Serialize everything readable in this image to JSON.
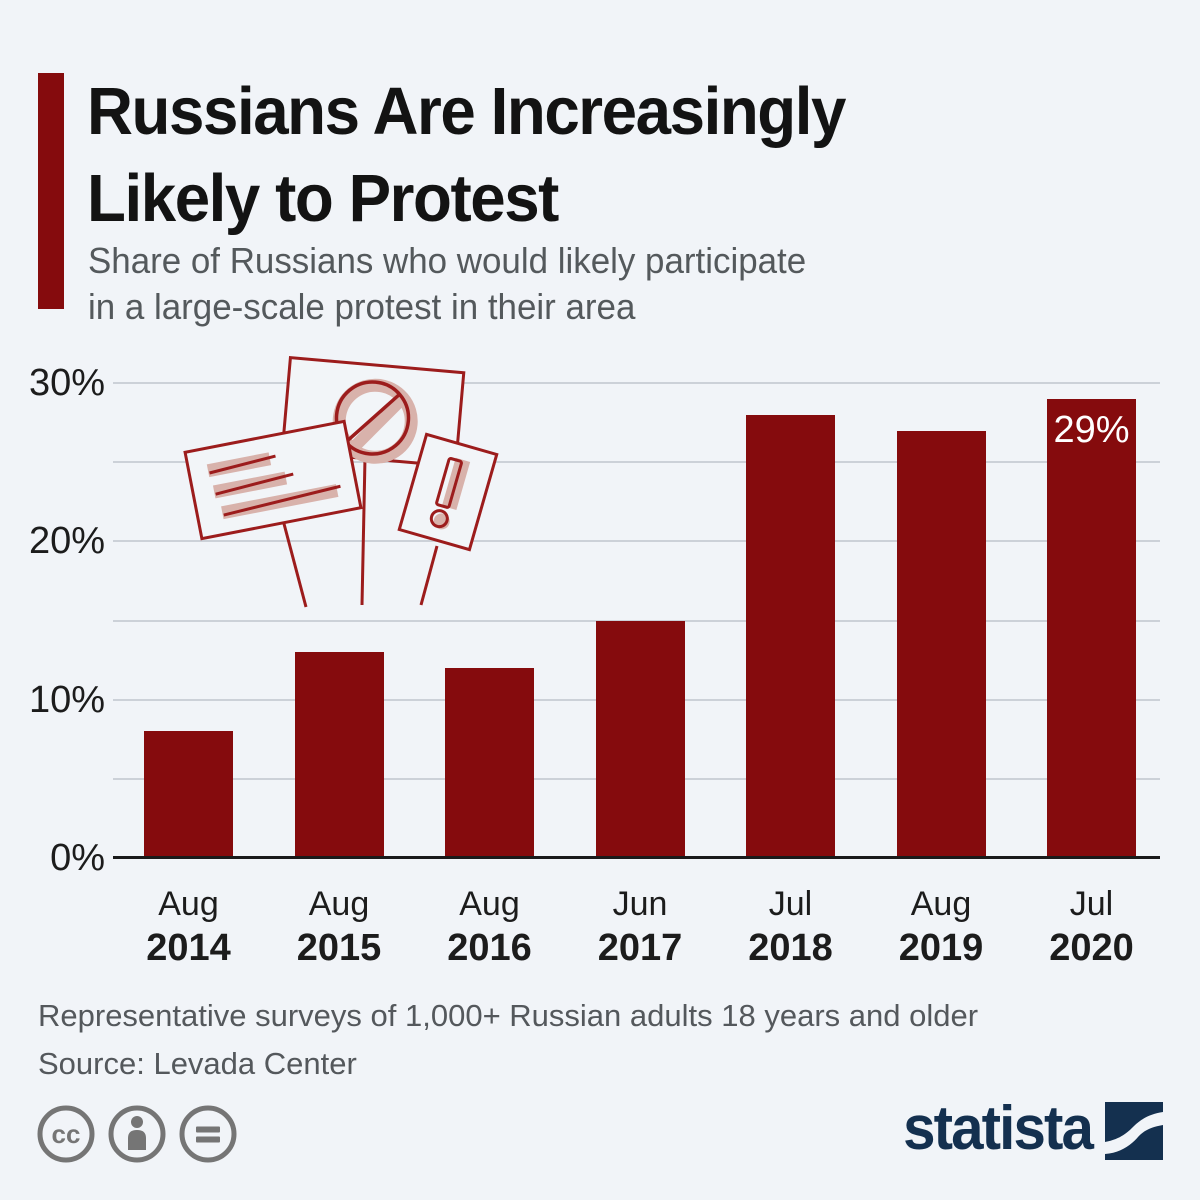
{
  "header": {
    "title_lines": [
      "Russians Are Increasingly",
      "Likely to Protest"
    ],
    "subtitle_lines": [
      "Share of Russians who would likely participate",
      "in a large-scale protest in their area"
    ],
    "accent_color": "#850b0d"
  },
  "chart_data": {
    "type": "bar",
    "title": "Share of Russians who would likely participate in a large-scale protest in their area",
    "categories": [
      {
        "month": "Aug",
        "year": "2014"
      },
      {
        "month": "Aug",
        "year": "2015"
      },
      {
        "month": "Aug",
        "year": "2016"
      },
      {
        "month": "Jun",
        "year": "2017"
      },
      {
        "month": "Jul",
        "year": "2018"
      },
      {
        "month": "Aug",
        "year": "2019"
      },
      {
        "month": "Jul",
        "year": "2020"
      }
    ],
    "values": [
      8,
      13,
      12,
      15,
      28,
      27,
      29
    ],
    "unit": "%",
    "xlabel": "",
    "ylabel": "",
    "ylim": [
      0,
      30
    ],
    "yticks": [
      0,
      10,
      20,
      30
    ],
    "ytick_labels": [
      "0%",
      "10%",
      "20%",
      "30%"
    ],
    "gridline_step": 5,
    "grid": true,
    "legend_position": "none",
    "bar_color": "#850b0d",
    "value_label": {
      "index": 6,
      "text": "29%"
    }
  },
  "illustration": {
    "name": "protest-placards",
    "outline_color": "#9c1c1c",
    "fill_color": "#d8b2ab"
  },
  "footer": {
    "note": "Representative surveys of 1,000+ Russian adults 18 years and older",
    "source": "Source: Levada Center"
  },
  "branding": {
    "logo_text": "statista",
    "logo_color": "#14304f",
    "license_icons": [
      "cc-icon",
      "attribution-icon",
      "no-derivatives-icon"
    ]
  }
}
